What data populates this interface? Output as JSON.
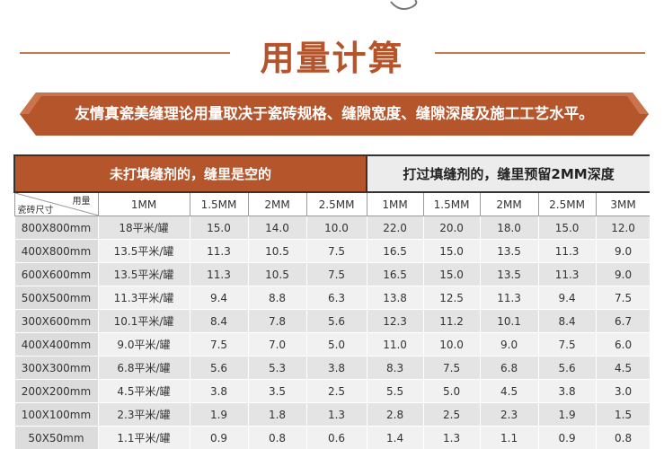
{
  "title": "用量计算",
  "banner": "友情真瓷美缝理论用量取决于瓷砖规格、缝隙宽度、缝隙深度及施工工艺水平。",
  "table": {
    "group_headers": [
      "未打填缝剂的，缝里是空的",
      "打过填缝剂的，缝里预留2MM深度"
    ],
    "corner": {
      "top": "用量",
      "bottom": "瓷砖尺寸"
    },
    "columns": [
      "1MM",
      "1.5MM",
      "2MM",
      "2.5MM",
      "1MM",
      "1.5MM",
      "2MM",
      "2.5MM",
      "3MM"
    ],
    "rows": [
      [
        "800X800mm",
        "18平米/罐",
        "15.0",
        "14.0",
        "10.0",
        "22.0",
        "20.0",
        "18.0",
        "15.0",
        "12.0"
      ],
      [
        "400X800mm",
        "13.5平米/罐",
        "11.3",
        "10.5",
        "7.5",
        "16.5",
        "15.0",
        "13.5",
        "11.3",
        "9.0"
      ],
      [
        "600X600mm",
        "13.5平米/罐",
        "11.3",
        "10.5",
        "7.5",
        "16.5",
        "15.0",
        "13.5",
        "11.3",
        "9.0"
      ],
      [
        "500X500mm",
        "11.3平米/罐",
        "9.4",
        "8.8",
        "6.3",
        "13.8",
        "12.5",
        "11.3",
        "9.4",
        "7.5"
      ],
      [
        "300X600mm",
        "10.1平米/罐",
        "8.4",
        "7.8",
        "5.6",
        "12.3",
        "11.2",
        "10.1",
        "8.4",
        "6.7"
      ],
      [
        "400X400mm",
        "9.0平米/罐",
        "7.5",
        "7.0",
        "5.0",
        "11.0",
        "10.0",
        "9.0",
        "7.5",
        "6.0"
      ],
      [
        "300X300mm",
        "6.8平米/罐",
        "5.6",
        "5.3",
        "3.8",
        "8.3",
        "7.5",
        "6.8",
        "5.6",
        "4.5"
      ],
      [
        "200X200mm",
        "4.5平米/罐",
        "3.8",
        "3.5",
        "2.5",
        "5.5",
        "5.0",
        "4.5",
        "3.8",
        "3.0"
      ],
      [
        "100X100mm",
        "2.3平米/罐",
        "1.9",
        "1.8",
        "1.3",
        "2.8",
        "2.5",
        "2.3",
        "1.9",
        "1.5"
      ],
      [
        "50X50mm",
        "1.1平米/罐",
        "0.9",
        "0.8",
        "0.6",
        "1.4",
        "1.3",
        "1.1",
        "0.9",
        "0.8"
      ]
    ]
  }
}
